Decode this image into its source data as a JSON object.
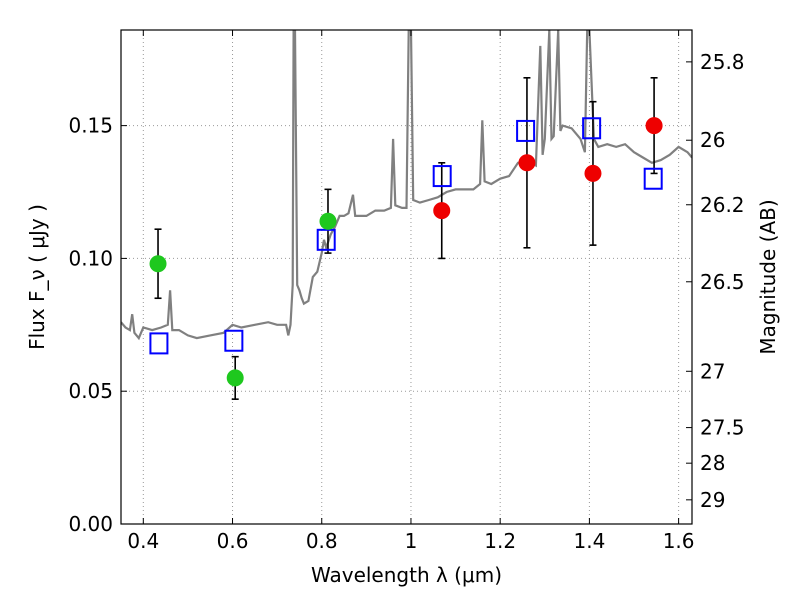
{
  "chart_data": {
    "type": "scatter",
    "title": "",
    "xlabel": "Wavelength  λ (μm)",
    "ylabel": "Flux  F_ν  ( μJy )",
    "y2label": "Magnitude (AB)",
    "xlim": [
      0.35,
      1.63
    ],
    "ylim": [
      0.0,
      0.186
    ],
    "grid": true,
    "xticks": [
      {
        "v": 0.4,
        "label": "0.4"
      },
      {
        "v": 0.6,
        "label": "0.6"
      },
      {
        "v": 0.8,
        "label": "0.8"
      },
      {
        "v": 1.0,
        "label": "1"
      },
      {
        "v": 1.2,
        "label": "1.2"
      },
      {
        "v": 1.4,
        "label": "1.4"
      },
      {
        "v": 1.6,
        "label": "1.6"
      }
    ],
    "yticks": [
      {
        "v": 0.0,
        "label": "0.00"
      },
      {
        "v": 0.05,
        "label": "0.05"
      },
      {
        "v": 0.1,
        "label": "0.10"
      },
      {
        "v": 0.15,
        "label": "0.15"
      }
    ],
    "y2ticks": [
      {
        "flux": 0.1445,
        "label": "26"
      },
      {
        "flux": 0.1202,
        "label": "26.2"
      },
      {
        "flux": 0.0912,
        "label": "26.5"
      },
      {
        "flux": 0.0575,
        "label": "27"
      },
      {
        "flux": 0.0363,
        "label": "27.5"
      },
      {
        "flux": 0.0229,
        "label": "28"
      },
      {
        "flux": 0.0091,
        "label": "29"
      },
      {
        "flux": 0.174,
        "label": "25.8"
      }
    ],
    "colors": {
      "spectrum": "#808080",
      "green": "#1ec81e",
      "red": "#ee0000",
      "model": "#0000ff",
      "error": "#000000",
      "grid": "#999999"
    },
    "spectrum": [
      [
        0.35,
        0.076
      ],
      [
        0.36,
        0.074
      ],
      [
        0.37,
        0.073
      ],
      [
        0.375,
        0.079
      ],
      [
        0.38,
        0.072
      ],
      [
        0.39,
        0.07
      ],
      [
        0.4,
        0.074
      ],
      [
        0.42,
        0.073
      ],
      [
        0.44,
        0.074
      ],
      [
        0.455,
        0.075
      ],
      [
        0.46,
        0.088
      ],
      [
        0.465,
        0.073
      ],
      [
        0.48,
        0.073
      ],
      [
        0.5,
        0.071
      ],
      [
        0.52,
        0.07
      ],
      [
        0.55,
        0.071
      ],
      [
        0.58,
        0.072
      ],
      [
        0.6,
        0.075
      ],
      [
        0.62,
        0.074
      ],
      [
        0.65,
        0.075
      ],
      [
        0.68,
        0.076
      ],
      [
        0.7,
        0.075
      ],
      [
        0.72,
        0.075
      ],
      [
        0.725,
        0.071
      ],
      [
        0.73,
        0.075
      ],
      [
        0.735,
        0.09
      ],
      [
        0.737,
        0.186
      ],
      [
        0.74,
        0.186
      ],
      [
        0.745,
        0.09
      ],
      [
        0.75,
        0.088
      ],
      [
        0.755,
        0.085
      ],
      [
        0.76,
        0.083
      ],
      [
        0.77,
        0.084
      ],
      [
        0.78,
        0.093
      ],
      [
        0.79,
        0.095
      ],
      [
        0.8,
        0.102
      ],
      [
        0.805,
        0.107
      ],
      [
        0.81,
        0.104
      ],
      [
        0.82,
        0.109
      ],
      [
        0.83,
        0.112
      ],
      [
        0.84,
        0.116
      ],
      [
        0.85,
        0.116
      ],
      [
        0.86,
        0.117
      ],
      [
        0.87,
        0.124
      ],
      [
        0.875,
        0.116
      ],
      [
        0.88,
        0.116
      ],
      [
        0.9,
        0.116
      ],
      [
        0.92,
        0.118
      ],
      [
        0.94,
        0.118
      ],
      [
        0.955,
        0.119
      ],
      [
        0.96,
        0.145
      ],
      [
        0.965,
        0.12
      ],
      [
        0.98,
        0.119
      ],
      [
        0.99,
        0.119
      ],
      [
        0.995,
        0.186
      ],
      [
        1.0,
        0.186
      ],
      [
        1.005,
        0.122
      ],
      [
        1.02,
        0.121
      ],
      [
        1.04,
        0.122
      ],
      [
        1.06,
        0.123
      ],
      [
        1.08,
        0.125
      ],
      [
        1.1,
        0.126
      ],
      [
        1.12,
        0.126
      ],
      [
        1.14,
        0.126
      ],
      [
        1.155,
        0.128
      ],
      [
        1.16,
        0.152
      ],
      [
        1.165,
        0.129
      ],
      [
        1.18,
        0.128
      ],
      [
        1.2,
        0.13
      ],
      [
        1.22,
        0.131
      ],
      [
        1.24,
        0.136
      ],
      [
        1.26,
        0.137
      ],
      [
        1.28,
        0.135
      ],
      [
        1.29,
        0.18
      ],
      [
        1.295,
        0.139
      ],
      [
        1.3,
        0.145
      ],
      [
        1.31,
        0.186
      ],
      [
        1.315,
        0.145
      ],
      [
        1.32,
        0.146
      ],
      [
        1.33,
        0.186
      ],
      [
        1.335,
        0.148
      ],
      [
        1.34,
        0.15
      ],
      [
        1.36,
        0.149
      ],
      [
        1.38,
        0.145
      ],
      [
        1.39,
        0.14
      ],
      [
        1.395,
        0.186
      ],
      [
        1.4,
        0.186
      ],
      [
        1.41,
        0.145
      ],
      [
        1.42,
        0.142
      ],
      [
        1.44,
        0.143
      ],
      [
        1.46,
        0.142
      ],
      [
        1.48,
        0.143
      ],
      [
        1.5,
        0.14
      ],
      [
        1.52,
        0.138
      ],
      [
        1.54,
        0.136
      ],
      [
        1.56,
        0.137
      ],
      [
        1.58,
        0.139
      ],
      [
        1.6,
        0.142
      ],
      [
        1.62,
        0.14
      ],
      [
        1.63,
        0.138
      ]
    ],
    "observed_green": [
      {
        "x": 0.433,
        "y": 0.098,
        "yerr": 0.013
      },
      {
        "x": 0.606,
        "y": 0.055,
        "yerr": 0.008
      },
      {
        "x": 0.814,
        "y": 0.114,
        "yerr": 0.012
      }
    ],
    "observed_red": [
      {
        "x": 1.069,
        "y": 0.118,
        "yerr": 0.018
      },
      {
        "x": 1.26,
        "y": 0.136,
        "yerr": 0.032
      },
      {
        "x": 1.408,
        "y": 0.132,
        "yerr": 0.027
      },
      {
        "x": 1.545,
        "y": 0.15,
        "yerr": 0.018
      }
    ],
    "model_points": [
      {
        "x": 0.435,
        "y": 0.068
      },
      {
        "x": 0.603,
        "y": 0.069
      },
      {
        "x": 0.81,
        "y": 0.107
      },
      {
        "x": 1.07,
        "y": 0.131
      },
      {
        "x": 1.257,
        "y": 0.148
      },
      {
        "x": 1.405,
        "y": 0.149
      },
      {
        "x": 1.543,
        "y": 0.13
      }
    ]
  }
}
